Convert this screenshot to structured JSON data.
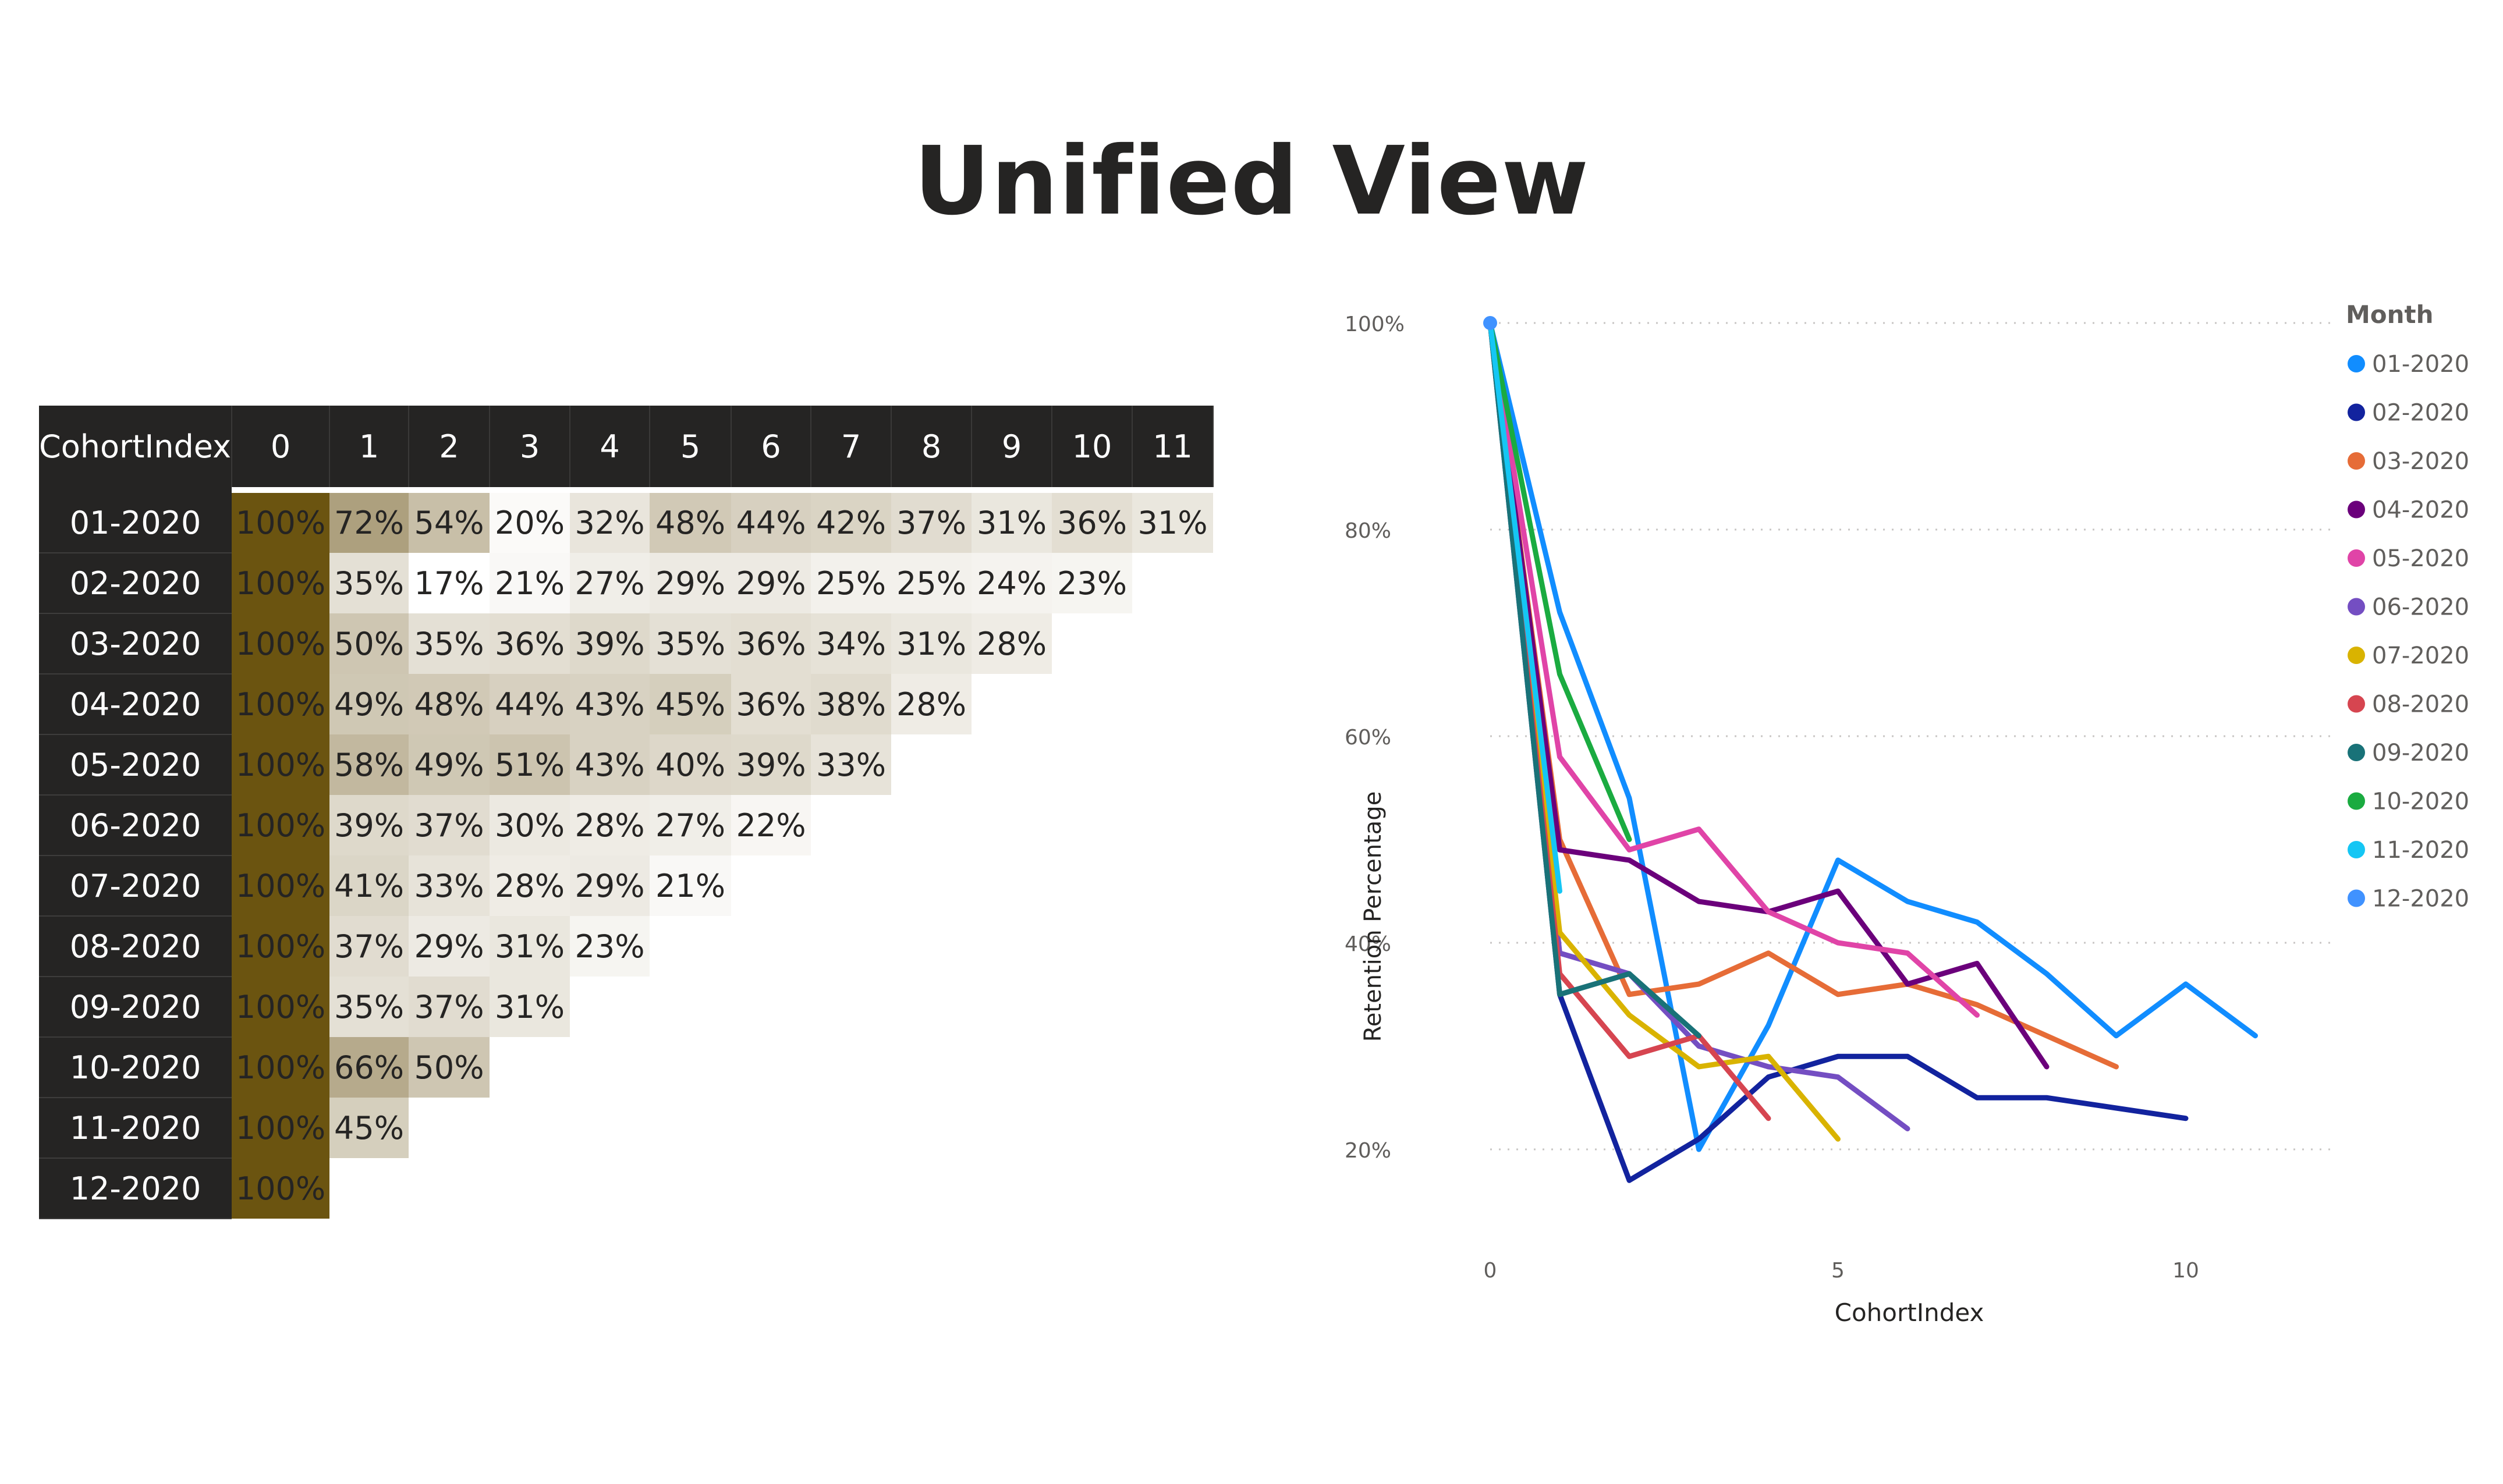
{
  "page": {
    "title": "Unified View"
  },
  "table": {
    "header": [
      "CohortIndex",
      "0",
      "1",
      "2",
      "3",
      "4",
      "5",
      "6",
      "7",
      "8",
      "9",
      "10",
      "11"
    ],
    "rows": [
      {
        "label": "01-2020",
        "values": [
          100,
          72,
          54,
          20,
          32,
          48,
          44,
          42,
          37,
          31,
          36,
          31
        ]
      },
      {
        "label": "02-2020",
        "values": [
          100,
          35,
          17,
          21,
          27,
          29,
          29,
          25,
          25,
          24,
          23
        ]
      },
      {
        "label": "03-2020",
        "values": [
          100,
          50,
          35,
          36,
          39,
          35,
          36,
          34,
          31,
          28
        ]
      },
      {
        "label": "04-2020",
        "values": [
          100,
          49,
          48,
          44,
          43,
          45,
          36,
          38,
          28
        ]
      },
      {
        "label": "05-2020",
        "values": [
          100,
          58,
          49,
          51,
          43,
          40,
          39,
          33
        ]
      },
      {
        "label": "06-2020",
        "values": [
          100,
          39,
          37,
          30,
          28,
          27,
          22
        ]
      },
      {
        "label": "07-2020",
        "values": [
          100,
          41,
          33,
          28,
          29,
          21
        ]
      },
      {
        "label": "08-2020",
        "values": [
          100,
          37,
          29,
          31,
          23
        ]
      },
      {
        "label": "09-2020",
        "values": [
          100,
          35,
          37,
          31
        ]
      },
      {
        "label": "10-2020",
        "values": [
          100,
          66,
          50
        ]
      },
      {
        "label": "11-2020",
        "values": [
          100,
          45
        ]
      },
      {
        "label": "12-2020",
        "values": [
          100
        ]
      }
    ],
    "colors": {
      "header_bg": "#252423",
      "col0_bg": "#6b5410",
      "scale_low": "#ffffff",
      "scale_high": "#ada07e"
    }
  },
  "chart_data": {
    "type": "line",
    "xlabel": "CohortIndex",
    "ylabel": "Retention Percentage",
    "xlim": [
      0,
      11
    ],
    "ylim": [
      10,
      100
    ],
    "x_ticks": [
      0,
      5,
      10
    ],
    "y_ticks": [
      20,
      40,
      60,
      80,
      100
    ],
    "y_tick_labels": [
      "20%",
      "40%",
      "60%",
      "80%",
      "100%"
    ],
    "grid": "horizontal-dotted",
    "legend": {
      "title": "Month",
      "placement": "top-right"
    },
    "series": [
      {
        "name": "01-2020",
        "color": "#118DFF",
        "values": [
          100,
          72,
          54,
          20,
          32,
          48,
          44,
          42,
          37,
          31,
          36,
          31
        ]
      },
      {
        "name": "02-2020",
        "color": "#12239E",
        "values": [
          100,
          35,
          17,
          21,
          27,
          29,
          29,
          25,
          25,
          24,
          23
        ]
      },
      {
        "name": "03-2020",
        "color": "#E66C37",
        "values": [
          100,
          50,
          35,
          36,
          39,
          35,
          36,
          34,
          31,
          28
        ]
      },
      {
        "name": "04-2020",
        "color": "#6B007B",
        "values": [
          100,
          49,
          48,
          44,
          43,
          45,
          36,
          38,
          28
        ]
      },
      {
        "name": "05-2020",
        "color": "#E044A7",
        "values": [
          100,
          58,
          49,
          51,
          43,
          40,
          39,
          33
        ]
      },
      {
        "name": "06-2020",
        "color": "#744EC2",
        "values": [
          100,
          39,
          37,
          30,
          28,
          27,
          22
        ]
      },
      {
        "name": "07-2020",
        "color": "#D9B300",
        "values": [
          100,
          41,
          33,
          28,
          29,
          21
        ]
      },
      {
        "name": "08-2020",
        "color": "#D64550",
        "values": [
          100,
          37,
          29,
          31,
          23
        ]
      },
      {
        "name": "09-2020",
        "color": "#197278",
        "values": [
          100,
          35,
          37,
          31
        ]
      },
      {
        "name": "10-2020",
        "color": "#1AAB40",
        "values": [
          100,
          66,
          50
        ]
      },
      {
        "name": "11-2020",
        "color": "#15C6F4",
        "values": [
          100,
          45
        ]
      },
      {
        "name": "12-2020",
        "color": "#4092FF",
        "values": [
          100
        ]
      }
    ]
  }
}
